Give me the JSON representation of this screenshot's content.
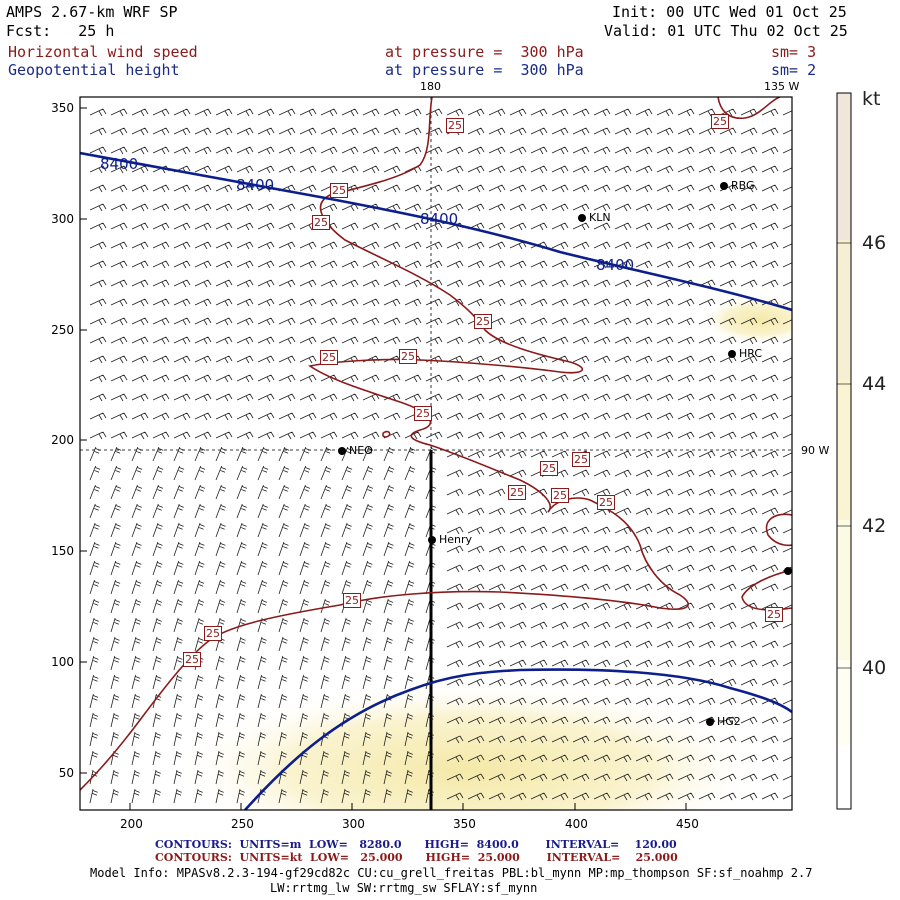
{
  "header": {
    "model": "AMPS 2.67-km WRF SP",
    "init": "Init: 00 UTC Wed 01 Oct 25",
    "fcst": "Fcst:   25 h",
    "valid": "Valid: 01 UTC Thu 02 Oct 25",
    "field1_name": "Horizontal wind speed",
    "field1_level": "at pressure =  300 hPa",
    "field1_sm": "sm= 3",
    "field2_name": "Geopotential height",
    "field2_level": "at pressure =  300 hPa",
    "field2_sm": "sm= 2"
  },
  "map": {
    "lon_labels": {
      "top": "180",
      "right_top": "135 W",
      "right_mid": "90 W"
    },
    "x_ticks": [
      "200",
      "250",
      "300",
      "350",
      "400",
      "450"
    ],
    "y_ticks": [
      "50",
      "100",
      "150",
      "200",
      "250",
      "300",
      "350"
    ],
    "stations": [
      "KLN",
      "RBG",
      "HRC",
      "NEO",
      "Henry",
      "HG2"
    ],
    "contour_labels_height": [
      "8400",
      "8400",
      "8400",
      "8400"
    ],
    "contour_label_speed": "25",
    "colors": {
      "height_contour": "#0d1f8c",
      "speed_contour": "#8b1a1a",
      "shade_light": "#fbf6dc",
      "shade_mid": "#f7eeb5"
    }
  },
  "colorbar": {
    "unit": "kt",
    "labels": [
      "46",
      "44",
      "42",
      "40"
    ]
  },
  "footer": {
    "line1": "CONTOURS:  UNITS=m  LOW=   8280.0      HIGH=  8400.0       INTERVAL=    120.00",
    "line2": "CONTOURS:  UNITS=kt  LOW=   25.000      HIGH=  25.000       INTERVAL=    25.000",
    "info1": "Model Info: MPASv8.2.3-194-gf29cd82c CU:cu_grell_freitas PBL:bl_mynn MP:mp_thompson SF:sf_noahmp 2.7",
    "info2": "LW:rrtmg_lw SW:rrtmg_sw SFLAY:sf_mynn"
  }
}
